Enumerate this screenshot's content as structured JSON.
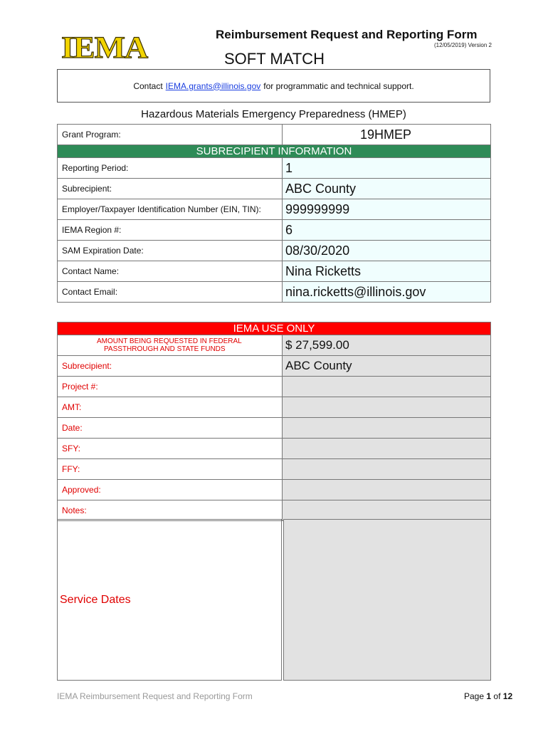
{
  "header": {
    "logo_text": "IEMA",
    "title": "Reimbursement Request and Reporting Form",
    "version": "(12/05/2019) Version 2",
    "subtitle": "SOFT MATCH"
  },
  "contact": {
    "prefix": "Contact",
    "email": "IEMA.grants@illinois.gov",
    "suffix": "for programmatic and technical support."
  },
  "program_title": "Hazardous Materials Emergency Preparedness (HMEP)",
  "grant": {
    "label": "Grant Program:",
    "value": "19HMEP"
  },
  "subrecipient_header": "SUBRECIPIENT INFORMATION",
  "subrecipient_rows": [
    {
      "label": "Reporting Period:",
      "value": "1"
    },
    {
      "label": "Subrecipient:",
      "value": "ABC County"
    },
    {
      "label": "Employer/Taxpayer Identification Number (EIN, TIN):",
      "value": "999999999"
    },
    {
      "label": "IEMA Region #:",
      "value": "6"
    },
    {
      "label": "SAM Expiration Date:",
      "value": "08/30/2020"
    },
    {
      "label": "Contact Name:",
      "value": "Nina Ricketts"
    },
    {
      "label": "Contact Email:",
      "value": "nina.ricketts@illinois.gov"
    }
  ],
  "iema_header": "IEMA USE ONLY",
  "iema_amount": {
    "label_line1": "AMOUNT BEING REQUESTED IN FEDERAL",
    "label_line2": "PASSTHROUGH AND STATE FUNDS",
    "value": "$ 27,599.00"
  },
  "iema_rows": [
    {
      "label": "Subrecipient:",
      "value": "ABC County"
    },
    {
      "label": "Project #:",
      "value": ""
    },
    {
      "label": "AMT:",
      "value": ""
    },
    {
      "label": "Date:",
      "value": ""
    },
    {
      "label": "SFY:",
      "value": ""
    },
    {
      "label": "FFY:",
      "value": ""
    },
    {
      "label": "Approved:",
      "value": ""
    },
    {
      "label": "Notes:",
      "value": ""
    }
  ],
  "service_dates_label": "Service Dates",
  "footer": {
    "left": "IEMA Reimbursement Request and Reporting Form",
    "page_prefix": "Page",
    "page": "1",
    "of": "of",
    "total": "12"
  }
}
